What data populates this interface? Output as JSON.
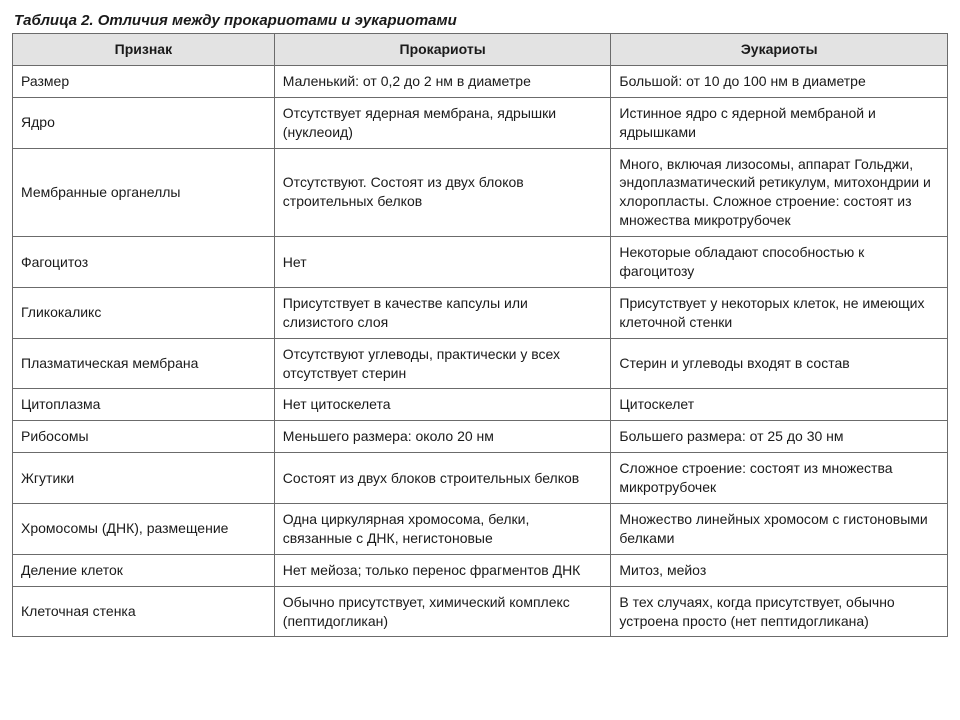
{
  "title": "Таблица 2. Отличия между прокариотами и эукариотами",
  "columns": [
    "Признак",
    "Прокариоты",
    "Эукариоты"
  ],
  "column_widths_pct": [
    28,
    36,
    36
  ],
  "header_bg": "#e3e3e3",
  "border_color": "#6b6b6b",
  "text_color": "#1a1a1a",
  "background_color": "#ffffff",
  "font_size_pt": 11,
  "title_font_size_pt": 11,
  "rows": [
    [
      "Размер",
      "Маленький: от 0,2 до 2 нм в диаметре",
      "Большой: от 10 до 100 нм в диаметре"
    ],
    [
      "Ядро",
      "Отсутствует ядерная мембрана, ядрышки (нуклеоид)",
      "Истинное ядро с ядерной мембраной и ядрышками"
    ],
    [
      "Мембранные органеллы",
      "Отсутствуют. Состоят из двух блоков строительных белков",
      "Много, включая лизосомы, аппарат Гольджи, эндоплазматический ретикулум, митохондрии и хлоропласты. Сложное строение: состоят из множества микротрубочек"
    ],
    [
      "Фагоцитоз",
      "Нет",
      "Некоторые обладают способностью к фагоцитозу"
    ],
    [
      "Гликокаликс",
      "Присутствует в качестве капсулы или слизистого слоя",
      "Присутствует у некоторых клеток, не имеющих клеточной стенки"
    ],
    [
      "Плазматическая мембрана",
      "Отсутствуют углеводы, практически у всех отсутствует стерин",
      "Стерин и углеводы входят в состав"
    ],
    [
      "Цитоплазма",
      "Нет цитоскелета",
      "Цитоскелет"
    ],
    [
      "Рибосомы",
      "Меньшего размера: около 20 нм",
      "Большего размера: от 25 до 30 нм"
    ],
    [
      "Жгутики",
      "Состоят из двух блоков строительных белков",
      "Сложное строение: состоят из множества микротрубочек"
    ],
    [
      "Хромосомы (ДНК), размещение",
      "Одна циркулярная хромосома, белки, связанные с ДНК, негистоновые",
      "Множество линейных хромосом с гистоновыми белками"
    ],
    [
      "Деление клеток",
      "Нет мейоза; только перенос фрагментов ДНК",
      "Митоз, мейоз"
    ],
    [
      "Клеточная стенка",
      "Обычно присутствует, химический комплекс (пептидогликан)",
      "В тех случаях, когда присутствует, обычно устроена просто (нет пептидогликана)"
    ]
  ]
}
